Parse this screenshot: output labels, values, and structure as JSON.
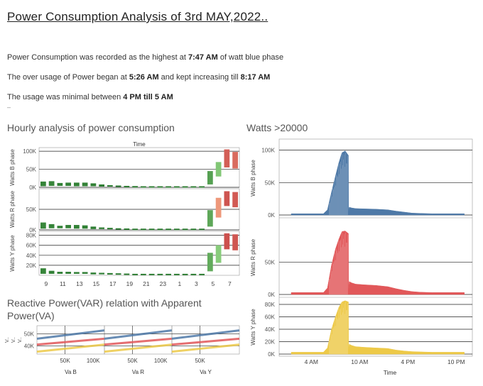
{
  "page": {
    "title": "Power Consumption Analysis of 3rd MAY,2022..",
    "notes": [
      {
        "parts": [
          {
            "text": "Power Consumption was recorded as the highest at ",
            "bold": false
          },
          {
            "text": "7:47 AM",
            "bold": true
          },
          {
            "text": " of watt blue phase",
            "bold": false
          }
        ]
      },
      {
        "parts": [
          {
            "text": "The over usage of Power began at ",
            "bold": false
          },
          {
            "text": "5:26 AM",
            "bold": true
          },
          {
            "text": " and kept increasing till ",
            "bold": false
          },
          {
            "text": "8:17 AM",
            "bold": true
          }
        ]
      },
      {
        "parts": [
          {
            "text": "The usage was minimal between ",
            "bold": false
          },
          {
            "text": "4 PM till 5 AM",
            "bold": true
          }
        ]
      }
    ],
    "dash": "–"
  },
  "sections": {
    "hourly_title": "Hourly analysis of power consumption",
    "watts_title": "Watts >20000",
    "reactive_title_line1": "Reactive Power(VAR) relation with Apparent",
    "reactive_title_line2": "Power(VA)"
  },
  "colors": {
    "blue": "#4e79a7",
    "red": "#e15759",
    "yellow": "#edc948",
    "green_dark": "#2d7d32",
    "green_light": "#8ccf7e",
    "red_dark": "#b2182b",
    "red_light": "#f4a582"
  },
  "chart_data": [
    {
      "type": "bar",
      "title": "Hourly analysis of power consumption",
      "xlabel": "Time",
      "categories": [
        9,
        10,
        11,
        12,
        13,
        14,
        15,
        16,
        17,
        18,
        19,
        20,
        21,
        22,
        23,
        0,
        1,
        2,
        3,
        4,
        5,
        6,
        7,
        8
      ],
      "tick_labels": [
        "9",
        "11",
        "13",
        "15",
        "17",
        "19",
        "21",
        "23",
        "1",
        "3",
        "5",
        "7"
      ],
      "panels": [
        {
          "ylabel": "Watts B phase",
          "yticks": [
            {
              "v": 0,
              "t": "0K"
            },
            {
              "v": 50000,
              "t": "50K"
            },
            {
              "v": 100000,
              "t": "100K"
            }
          ],
          "ylim": [
            0,
            110000
          ],
          "ranges": [
            [
              3000,
              16000
            ],
            [
              4000,
              17000
            ],
            [
              4000,
              12000
            ],
            [
              4000,
              13000
            ],
            [
              3000,
              13000
            ],
            [
              3000,
              13000
            ],
            [
              3000,
              11000
            ],
            [
              2000,
              8000
            ],
            [
              2000,
              6000
            ],
            [
              1500,
              5000
            ],
            [
              1500,
              4000
            ],
            [
              1500,
              3500
            ],
            [
              1500,
              3000
            ],
            [
              1500,
              3000
            ],
            [
              1500,
              3000
            ],
            [
              1500,
              3000
            ],
            [
              1500,
              3000
            ],
            [
              1500,
              3000
            ],
            [
              1500,
              3000
            ],
            [
              1500,
              3000
            ],
            [
              8000,
              45000
            ],
            [
              30000,
              70000
            ],
            [
              55000,
              105000
            ],
            [
              52000,
              98000
            ]
          ]
        },
        {
          "ylabel": "Watts R phase",
          "yticks": [
            {
              "v": 0,
              "t": "0K"
            },
            {
              "v": 50000,
              "t": "50K"
            }
          ],
          "ylim": [
            0,
            100000
          ],
          "ranges": [
            [
              3000,
              18000
            ],
            [
              4000,
              14000
            ],
            [
              4000,
              10000
            ],
            [
              4000,
              12000
            ],
            [
              3000,
              12000
            ],
            [
              3000,
              11000
            ],
            [
              2000,
              8000
            ],
            [
              2000,
              6000
            ],
            [
              1500,
              5000
            ],
            [
              1500,
              4000
            ],
            [
              1500,
              3500
            ],
            [
              1500,
              3000
            ],
            [
              1500,
              3000
            ],
            [
              1500,
              3000
            ],
            [
              1500,
              3000
            ],
            [
              1500,
              3000
            ],
            [
              1500,
              3000
            ],
            [
              1500,
              3000
            ],
            [
              1500,
              3000
            ],
            [
              1500,
              3000
            ],
            [
              8000,
              48000
            ],
            [
              30000,
              78000
            ],
            [
              58000,
              94000
            ],
            [
              55000,
              92000
            ]
          ]
        },
        {
          "ylabel": "Watts Y phase",
          "yticks": [
            {
              "v": 20000,
              "t": "20K"
            },
            {
              "v": 40000,
              "t": "40K"
            },
            {
              "v": 60000,
              "t": "60K"
            },
            {
              "v": 80000,
              "t": "80K"
            }
          ],
          "ylim": [
            0,
            88000
          ],
          "ranges": [
            [
              3000,
              14000
            ],
            [
              3000,
              9000
            ],
            [
              3000,
              7000
            ],
            [
              3000,
              7000
            ],
            [
              3000,
              6500
            ],
            [
              3000,
              6500
            ],
            [
              2000,
              5500
            ],
            [
              2000,
              5000
            ],
            [
              1500,
              4500
            ],
            [
              1500,
              4000
            ],
            [
              1500,
              3500
            ],
            [
              1500,
              3000
            ],
            [
              1500,
              3000
            ],
            [
              1500,
              3000
            ],
            [
              1500,
              3000
            ],
            [
              1500,
              3000
            ],
            [
              1500,
              3000
            ],
            [
              1500,
              3000
            ],
            [
              1500,
              3000
            ],
            [
              1500,
              3000
            ],
            [
              8000,
              45000
            ],
            [
              25000,
              60000
            ],
            [
              52000,
              84000
            ],
            [
              50000,
              82000
            ]
          ]
        }
      ]
    },
    {
      "type": "area",
      "title": "Watts >20000",
      "xlabel": "Time",
      "xticks": [
        {
          "v": 4,
          "t": "4 AM"
        },
        {
          "v": 10,
          "t": "10 AM"
        },
        {
          "v": 16,
          "t": "4 PM"
        },
        {
          "v": 22,
          "t": "10 PM"
        }
      ],
      "xlim": [
        0,
        24
      ],
      "panels": [
        {
          "name": "Watts B phase",
          "color": "blue",
          "yticks": [
            {
              "v": 0,
              "t": "0K"
            },
            {
              "v": 50000,
              "t": "50K"
            },
            {
              "v": 100000,
              "t": "100K"
            }
          ],
          "ylim": [
            0,
            104000
          ],
          "x": [
            1.5,
            5.5,
            6.0,
            6.5,
            7.0,
            7.4,
            7.8,
            8.2,
            8.6,
            8.62,
            8.7,
            9.0,
            9.5,
            10.5,
            12,
            13.5,
            14.5,
            15.5,
            16.5,
            17.5,
            19,
            21,
            23
          ],
          "y": [
            2000,
            2000,
            8000,
            35000,
            60000,
            80000,
            96000,
            99000,
            92000,
            3000,
            12000,
            11000,
            10000,
            9500,
            9000,
            8000,
            6000,
            4500,
            3000,
            2500,
            2000,
            2000,
            2000
          ]
        },
        {
          "name": "Watts R phase",
          "color": "red",
          "yticks": [
            {
              "v": 0,
              "t": "0K"
            },
            {
              "v": 50000,
              "t": "50K"
            }
          ],
          "ylim": [
            0,
            104000
          ],
          "x": [
            1.5,
            5.5,
            6.0,
            6.5,
            7.0,
            7.4,
            7.8,
            8.2,
            8.6,
            8.62,
            8.7,
            9.0,
            9.5,
            10.5,
            12,
            13.5,
            14.5,
            15.5,
            16.5,
            17.5,
            19,
            21,
            23
          ],
          "y": [
            3000,
            3000,
            10000,
            45000,
            70000,
            85000,
            97000,
            98000,
            94000,
            3000,
            20000,
            18000,
            16000,
            15000,
            14000,
            12000,
            9000,
            6500,
            4500,
            3500,
            3000,
            3000,
            3000
          ]
        },
        {
          "name": "Watts Y phase",
          "color": "yellow",
          "yticks": [
            {
              "v": 0,
              "t": "0K"
            },
            {
              "v": 20000,
              "t": "20K"
            },
            {
              "v": 40000,
              "t": "40K"
            },
            {
              "v": 60000,
              "t": "60K"
            },
            {
              "v": 80000,
              "t": "80K"
            }
          ],
          "ylim": [
            0,
            88000
          ],
          "x": [
            1.5,
            5.5,
            6.0,
            6.5,
            7.0,
            7.4,
            7.8,
            8.2,
            8.6,
            8.62,
            8.7,
            9.0,
            9.5,
            10.5,
            12,
            13.5,
            14.5,
            15.5,
            16.5,
            17.5,
            19,
            21,
            23
          ],
          "y": [
            3000,
            3000,
            10000,
            40000,
            60000,
            75000,
            84000,
            86000,
            84000,
            3000,
            16000,
            14000,
            12000,
            11000,
            10000,
            9000,
            6500,
            5000,
            4000,
            3500,
            3000,
            3000,
            3000
          ]
        }
      ]
    },
    {
      "type": "line",
      "title": "Reactive Power(VAR) relation with Apparent Power(VA)",
      "yticks": [
        {
          "v": 40000,
          "t": "40K"
        },
        {
          "v": 50000,
          "t": "50K"
        }
      ],
      "ylim": [
        33000,
        57000
      ],
      "ylabels": [
        "V..",
        "V..",
        "V.."
      ],
      "xlim": [
        0,
        120000
      ],
      "xticks": [
        {
          "v": 50000,
          "t": "50K"
        },
        {
          "v": 100000,
          "t": "100K"
        }
      ],
      "columns": [
        {
          "name": "Va B",
          "xticks_shown": true
        },
        {
          "name": "Va R",
          "xticks_shown": true
        },
        {
          "name": "Va Y",
          "xticks_shown": false
        }
      ],
      "series": [
        {
          "name": "blue",
          "color": "blue",
          "x": [
            0,
            120000
          ],
          "y": [
            46000,
            53000
          ]
        },
        {
          "name": "red",
          "color": "red",
          "x": [
            0,
            120000
          ],
          "y": [
            41000,
            46000
          ]
        },
        {
          "name": "yellow",
          "color": "yellow",
          "x": [
            0,
            120000
          ],
          "y": [
            35000,
            41000
          ]
        }
      ]
    }
  ]
}
